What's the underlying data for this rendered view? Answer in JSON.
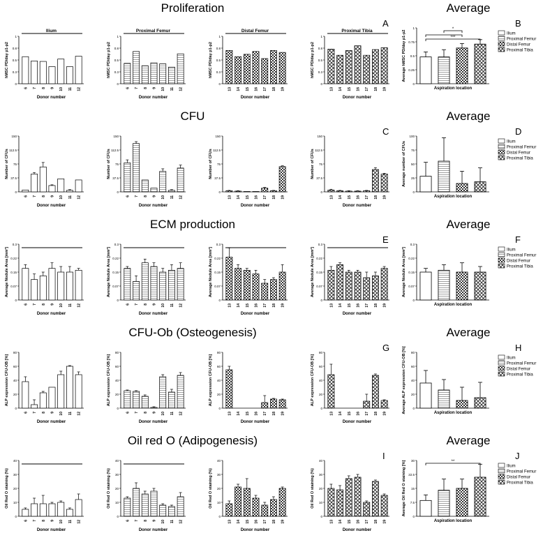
{
  "colors": {
    "ink": "#000000",
    "background": "#ffffff"
  },
  "legend": [
    "Ilium",
    "Proximal Femur",
    "Distal Femur",
    "Proximal Tibia"
  ],
  "rows": [
    {
      "title": "Proliferation",
      "average_title": "Average",
      "letters": [
        "A",
        "B"
      ],
      "ylabel": "hMSC PD/day p1-p2",
      "avg_ylabel": "Average hMSC PD/day p1-p2",
      "avg_xlabel": "Aspiration location",
      "ymax": 1.0,
      "avg_ymax": 1.0,
      "avg_sig": [
        {
          "a": 1,
          "b": 2,
          "label": "*"
        },
        {
          "a": 0,
          "b": 2,
          "label": ""
        },
        {
          "a": 0,
          "b": 3,
          "label": "***"
        }
      ],
      "hline_panels": [
        0,
        1,
        2,
        3
      ]
    },
    {
      "title": "CFU",
      "average_title": "Average",
      "letters": [
        "C",
        "D"
      ],
      "ylabel": "Number of CFUs",
      "avg_ylabel": "Average number of CFUs",
      "avg_xlabel": "Aspiration location",
      "ymax": 150,
      "avg_ymax": 100,
      "avg_sig": [],
      "hline_panels": []
    },
    {
      "title": "ECM production",
      "average_title": "Average",
      "letters": [
        "E",
        "F"
      ],
      "ylabel": "Average Nodule Area [mm²]",
      "avg_ylabel": "Average Nodule Area [mm²]",
      "avg_xlabel": "Aspiration location",
      "ymax": 0.3,
      "avg_ymax": 0.3,
      "avg_sig": [],
      "hline_panels": [
        0,
        1,
        2,
        3
      ]
    },
    {
      "title": "CFU-Ob (Osteogenesis)",
      "average_title": "Average",
      "letters": [
        "G",
        "H"
      ],
      "ylabel": "ALP expression CFU-OB [%]",
      "avg_ylabel": "Average ALP expression CFU-OB [%]",
      "avg_xlabel": "Aspiration location",
      "ymax": 80,
      "avg_ymax": 80,
      "avg_sig": [],
      "hline_panels": []
    },
    {
      "title": "Oil red O (Adipogenesis)",
      "average_title": "Average",
      "letters": [
        "I",
        "J"
      ],
      "ylabel": "Oil Red O staining (%)",
      "avg_ylabel": "Average Oil Red O staining [%]",
      "avg_xlabel": "Aspiration location",
      "ymax": 40,
      "avg_ymax": 30,
      "avg_sig": [
        {
          "a": 0,
          "b": 3,
          "label": "**"
        }
      ],
      "hline_panels": [
        0,
        1
      ]
    }
  ],
  "panel_titles": [
    "Ilium",
    "Proximal Femur",
    "Distal Femur",
    "Proximal Tibia"
  ],
  "panel_xlabel": "Donor number",
  "chart_data": [
    {
      "type": "bar",
      "title": "Proliferation",
      "panels": [
        {
          "name": "Ilium",
          "categories": [
            "6",
            "7",
            "8",
            "9",
            "10",
            "11",
            "12"
          ],
          "values": [
            0.57,
            0.48,
            0.47,
            0.36,
            0.52,
            0.36,
            0.58
          ],
          "errors": [
            0,
            0,
            0,
            0,
            0,
            0,
            0
          ],
          "pattern": "white"
        },
        {
          "name": "Proximal Femur",
          "categories": [
            "6",
            "7",
            "8",
            "9",
            "10",
            "11",
            "12"
          ],
          "values": [
            0.43,
            0.68,
            0.38,
            0.44,
            0.42,
            0.35,
            0.63
          ],
          "errors": [
            0,
            0,
            0,
            0,
            0,
            0,
            0
          ],
          "pattern": "lines"
        },
        {
          "name": "Distal Femur",
          "categories": [
            "13",
            "14",
            "15",
            "16",
            "17",
            "18",
            "19"
          ],
          "values": [
            0.7,
            0.57,
            0.62,
            0.68,
            0.53,
            0.7,
            0.66
          ],
          "errors": [
            0,
            0,
            0,
            0,
            0,
            0,
            0
          ],
          "pattern": "checker"
        },
        {
          "name": "Proximal Tibia",
          "categories": [
            "13",
            "14",
            "15",
            "16",
            "17",
            "18",
            "19"
          ],
          "values": [
            0.73,
            0.6,
            0.7,
            0.8,
            0.6,
            0.72,
            0.76
          ],
          "errors": [
            0,
            0,
            0,
            0,
            0,
            0,
            0
          ],
          "pattern": "crosshatch"
        }
      ],
      "average": {
        "categories": [
          "Ilium",
          "Proximal Femur",
          "Distal Femur",
          "Proximal Tibia"
        ],
        "values": [
          0.48,
          0.48,
          0.64,
          0.71
        ],
        "errors": [
          0.09,
          0.13,
          0.08,
          0.08
        ]
      }
    },
    {
      "type": "bar",
      "title": "CFU",
      "panels": [
        {
          "name": "Ilium",
          "categories": [
            "6",
            "7",
            "8",
            "9",
            "10",
            "11",
            "12"
          ],
          "values": [
            5,
            48,
            67,
            17,
            35,
            4,
            32
          ],
          "errors": [
            0,
            4,
            12,
            2,
            0,
            2,
            0
          ],
          "pattern": "white"
        },
        {
          "name": "Proximal Femur",
          "categories": [
            "6",
            "7",
            "8",
            "9",
            "10",
            "11",
            "12"
          ],
          "values": [
            78,
            130,
            32,
            10,
            55,
            4,
            64
          ],
          "errors": [
            8,
            5,
            0,
            0,
            7,
            2,
            8
          ],
          "pattern": "lines"
        },
        {
          "name": "Distal Femur",
          "categories": [
            "13",
            "14",
            "15",
            "16",
            "17",
            "18",
            "19"
          ],
          "values": [
            3,
            2,
            1,
            1,
            10,
            3,
            68
          ],
          "errors": [
            1,
            1,
            0,
            0,
            2,
            1,
            2
          ],
          "pattern": "checker"
        },
        {
          "name": "Proximal Tibia",
          "categories": [
            "13",
            "14",
            "15",
            "16",
            "17",
            "18",
            "19"
          ],
          "values": [
            5,
            3,
            2,
            2,
            3,
            60,
            48
          ],
          "errors": [
            2,
            1,
            1,
            1,
            1,
            5,
            2
          ],
          "pattern": "crosshatch"
        }
      ],
      "average": {
        "categories": [
          "Ilium",
          "Proximal Femur",
          "Distal Femur",
          "Proximal Tibia"
        ],
        "values": [
          28,
          55,
          15,
          18
        ],
        "errors": [
          25,
          42,
          22,
          25
        ]
      }
    },
    {
      "type": "bar",
      "title": "ECM production",
      "panels": [
        {
          "name": "Ilium",
          "categories": [
            "6",
            "7",
            "8",
            "9",
            "10",
            "11",
            "12"
          ],
          "values": [
            0.17,
            0.11,
            0.13,
            0.17,
            0.15,
            0.15,
            0.16
          ],
          "errors": [
            0.02,
            0.03,
            0.02,
            0.03,
            0.03,
            0.03,
            0.01
          ],
          "pattern": "white"
        },
        {
          "name": "Proximal Femur",
          "categories": [
            "6",
            "7",
            "8",
            "9",
            "10",
            "11",
            "12"
          ],
          "values": [
            0.17,
            0.1,
            0.2,
            0.18,
            0.15,
            0.16,
            0.17
          ],
          "errors": [
            0.01,
            0.03,
            0.02,
            0.02,
            0.02,
            0.03,
            0.03
          ],
          "pattern": "lines"
        },
        {
          "name": "Distal Femur",
          "categories": [
            "13",
            "14",
            "15",
            "16",
            "17",
            "18",
            "19"
          ],
          "values": [
            0.23,
            0.17,
            0.16,
            0.14,
            0.09,
            0.11,
            0.15
          ],
          "errors": [
            0.05,
            0.02,
            0.01,
            0.02,
            0.02,
            0.01,
            0.04
          ],
          "pattern": "checker"
        },
        {
          "name": "Proximal Tibia",
          "categories": [
            "13",
            "14",
            "15",
            "16",
            "17",
            "18",
            "19"
          ],
          "values": [
            0.16,
            0.19,
            0.15,
            0.15,
            0.12,
            0.13,
            0.17
          ],
          "errors": [
            0.02,
            0.01,
            0.01,
            0.01,
            0.03,
            0.02,
            0.01
          ],
          "pattern": "crosshatch"
        }
      ],
      "average": {
        "categories": [
          "Ilium",
          "Proximal Femur",
          "Distal Femur",
          "Proximal Tibia"
        ],
        "values": [
          0.15,
          0.16,
          0.15,
          0.15
        ],
        "errors": [
          0.02,
          0.03,
          0.05,
          0.03
        ]
      }
    },
    {
      "type": "bar",
      "title": "CFU-Ob (Osteogenesis)",
      "panels": [
        {
          "name": "Ilium",
          "categories": [
            "6",
            "7",
            "8",
            "9",
            "10",
            "11",
            "12"
          ],
          "values": [
            38,
            5,
            22,
            30,
            48,
            60,
            48
          ],
          "errors": [
            7,
            7,
            2,
            0,
            5,
            1,
            4
          ],
          "pattern": "white"
        },
        {
          "name": "Proximal Femur",
          "categories": [
            "6",
            "7",
            "8",
            "9",
            "10",
            "11",
            "12"
          ],
          "values": [
            25,
            24,
            17,
            1,
            45,
            23,
            47
          ],
          "errors": [
            1,
            1,
            2,
            1,
            3,
            4,
            4
          ],
          "pattern": "lines"
        },
        {
          "name": "Distal Femur",
          "categories": [
            "13",
            "14",
            "15",
            "16",
            "17",
            "18",
            "19"
          ],
          "values": [
            55,
            0,
            0,
            0,
            8,
            13,
            12
          ],
          "errors": [
            5,
            0,
            0,
            0,
            10,
            1,
            1
          ],
          "pattern": "checker"
        },
        {
          "name": "Proximal Tibia",
          "categories": [
            "13",
            "14",
            "15",
            "16",
            "17",
            "18",
            "19"
          ],
          "values": [
            48,
            0,
            0,
            0,
            10,
            47,
            11
          ],
          "errors": [
            15,
            0,
            0,
            0,
            10,
            2,
            1
          ],
          "pattern": "crosshatch"
        }
      ],
      "average": {
        "categories": [
          "Ilium",
          "Proximal Femur",
          "Distal Femur",
          "Proximal Tibia"
        ],
        "values": [
          36,
          26,
          11,
          15
        ],
        "errors": [
          18,
          15,
          19,
          22
        ]
      }
    },
    {
      "type": "bar",
      "title": "Oil red O (Adipogenesis)",
      "panels": [
        {
          "name": "Ilium",
          "categories": [
            "6",
            "7",
            "8",
            "9",
            "10",
            "11",
            "12"
          ],
          "values": [
            5,
            9,
            9,
            9,
            10,
            5,
            12
          ],
          "errors": [
            1,
            4,
            6,
            1,
            1,
            1,
            4
          ],
          "pattern": "white"
        },
        {
          "name": "Proximal Femur",
          "categories": [
            "6",
            "7",
            "8",
            "9",
            "10",
            "11",
            "12"
          ],
          "values": [
            13,
            20,
            16,
            18,
            8,
            7,
            14
          ],
          "errors": [
            1,
            4,
            2,
            2,
            1,
            1,
            3
          ],
          "pattern": "lines"
        },
        {
          "name": "Distal Femur",
          "categories": [
            "13",
            "14",
            "15",
            "16",
            "17",
            "18",
            "19"
          ],
          "values": [
            9,
            21,
            20,
            13,
            8,
            12,
            20
          ],
          "errors": [
            2,
            2,
            7,
            2,
            2,
            2,
            1
          ],
          "pattern": "checker"
        },
        {
          "name": "Proximal Tibia",
          "categories": [
            "13",
            "14",
            "15",
            "16",
            "17",
            "18",
            "19"
          ],
          "values": [
            20,
            19,
            27,
            28,
            10,
            25,
            15
          ],
          "errors": [
            3,
            3,
            2,
            2,
            1,
            1,
            1
          ],
          "pattern": "crosshatch"
        }
      ],
      "average": {
        "categories": [
          "Ilium",
          "Proximal Femur",
          "Distal Femur",
          "Proximal Tibia"
        ],
        "values": [
          8.5,
          14,
          15,
          21
        ],
        "errors": [
          3,
          6,
          5,
          7
        ]
      }
    }
  ]
}
